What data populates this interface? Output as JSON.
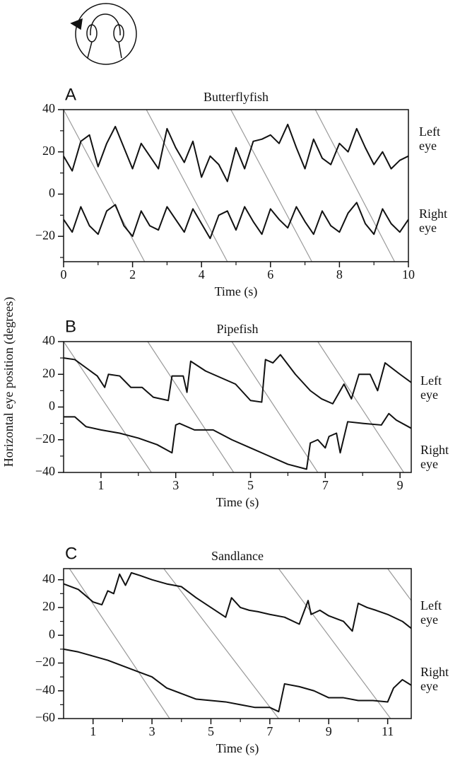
{
  "ylabel": "Horizontal eye position (degrees)",
  "chart_data": [
    {
      "type": "line",
      "panel": "A",
      "title": "Butterflyfish",
      "xlabel": "Time (s)",
      "xlim": [
        0,
        10
      ],
      "ylim": [
        -32,
        40
      ],
      "xticks": [
        0,
        2,
        4,
        6,
        8,
        10
      ],
      "minor_xticks": [
        1,
        3,
        5,
        7,
        9
      ],
      "yticks": [
        40,
        20,
        0,
        {
          "value": -20,
          "label": "−20"
        }
      ],
      "minor_yticks": [
        30,
        10,
        -10,
        -30
      ],
      "series": [
        {
          "name": "Left eye",
          "color": "#111111",
          "x": [
            0,
            0.25,
            0.5,
            0.75,
            1,
            1.25,
            1.5,
            1.75,
            2,
            2.25,
            2.5,
            2.75,
            3,
            3.25,
            3.5,
            3.75,
            4,
            4.25,
            4.5,
            4.75,
            5,
            5.25,
            5.5,
            5.75,
            6,
            6.25,
            6.5,
            6.75,
            7,
            7.25,
            7.5,
            7.75,
            8,
            8.25,
            8.5,
            8.75,
            9,
            9.25,
            9.5,
            9.75,
            10
          ],
          "values": [
            18,
            11,
            25,
            28,
            13,
            24,
            32,
            22,
            12,
            24,
            18,
            12,
            31,
            22,
            15,
            25,
            8,
            18,
            14,
            6,
            22,
            12,
            25,
            26,
            28,
            24,
            33,
            22,
            12,
            26,
            17,
            14,
            24,
            20,
            31,
            22,
            14,
            20,
            12,
            16,
            18
          ]
        },
        {
          "name": "Right eye",
          "color": "#111111",
          "x": [
            0,
            0.25,
            0.5,
            0.75,
            1,
            1.25,
            1.5,
            1.75,
            2,
            2.25,
            2.5,
            2.75,
            3,
            3.25,
            3.5,
            3.75,
            4,
            4.25,
            4.5,
            4.75,
            5,
            5.25,
            5.5,
            5.75,
            6,
            6.25,
            6.5,
            6.75,
            7,
            7.25,
            7.5,
            7.75,
            8,
            8.25,
            8.5,
            8.75,
            9,
            9.25,
            9.5,
            9.75,
            10
          ],
          "values": [
            -12,
            -18,
            -6,
            -15,
            -19,
            -8,
            -5,
            -15,
            -20,
            -8,
            -15,
            -17,
            -6,
            -12,
            -18,
            -7,
            -14,
            -21,
            -10,
            -8,
            -17,
            -6,
            -13,
            -19,
            -7,
            -12,
            -16,
            -6,
            -13,
            -19,
            -8,
            -15,
            -18,
            -9,
            -4,
            -14,
            -19,
            -7,
            -14,
            -18,
            -12
          ]
        }
      ],
      "reference_lines": [
        {
          "color": "#999999",
          "x": [
            0,
            2.35
          ],
          "y": [
            40,
            -32
          ]
        },
        {
          "color": "#999999",
          "x": [
            2.4,
            4.75
          ],
          "y": [
            40,
            -32
          ]
        },
        {
          "color": "#999999",
          "x": [
            4.85,
            7.2
          ],
          "y": [
            40,
            -32
          ]
        },
        {
          "color": "#999999",
          "x": [
            7.3,
            9.6
          ],
          "y": [
            40,
            -32
          ]
        }
      ]
    },
    {
      "type": "line",
      "panel": "B",
      "title": "Pipefish",
      "xlabel": "Time (s)",
      "xlim": [
        0,
        9.3
      ],
      "ylim": [
        -40,
        40
      ],
      "xticks": [
        1,
        3,
        5,
        7,
        9
      ],
      "minor_xticks": [
        2,
        4,
        6,
        8
      ],
      "yticks": [
        40,
        20,
        0,
        {
          "value": -20,
          "label": "−20"
        },
        {
          "value": -40,
          "label": "−40"
        }
      ],
      "minor_yticks": [
        30,
        10,
        -10,
        -30
      ],
      "series": [
        {
          "name": "Left eye",
          "color": "#111111",
          "x": [
            0,
            0.3,
            0.6,
            0.9,
            1.1,
            1.2,
            1.5,
            1.8,
            2.1,
            2.4,
            2.8,
            2.9,
            3.2,
            3.3,
            3.4,
            3.8,
            4.2,
            4.6,
            5.0,
            5.3,
            5.4,
            5.6,
            5.8,
            6.2,
            6.6,
            6.9,
            7.2,
            7.5,
            7.7,
            7.9,
            8.2,
            8.4,
            8.6,
            9.0,
            9.3
          ],
          "values": [
            30,
            29,
            24,
            19,
            12,
            20,
            19,
            12,
            12,
            6,
            4,
            19,
            19,
            9,
            28,
            22,
            18,
            14,
            4,
            3,
            29,
            27,
            32,
            20,
            10,
            5,
            2,
            14,
            5,
            20,
            20,
            10,
            27,
            20,
            15
          ]
        },
        {
          "name": "Right eye",
          "color": "#111111",
          "x": [
            0,
            0.3,
            0.6,
            1.0,
            1.5,
            2.0,
            2.5,
            2.9,
            3.0,
            3.1,
            3.5,
            4.0,
            4.5,
            5.0,
            5.5,
            6.0,
            6.5,
            6.6,
            6.8,
            7.0,
            7.1,
            7.3,
            7.4,
            7.6,
            8.0,
            8.5,
            8.7,
            8.9,
            9.3
          ],
          "values": [
            -6,
            -6,
            -12,
            -14,
            -16,
            -19,
            -23,
            -28,
            -11,
            -10,
            -14,
            -14,
            -20,
            -25,
            -30,
            -35,
            -38,
            -22,
            -20,
            -25,
            -18,
            -16,
            -28,
            -9,
            -10,
            -11,
            -4,
            -8,
            -13
          ]
        }
      ],
      "reference_lines": [
        {
          "color": "#999999",
          "x": [
            0,
            2.35
          ],
          "y": [
            40,
            -40
          ]
        },
        {
          "color": "#999999",
          "x": [
            2.25,
            4.55
          ],
          "y": [
            40,
            -40
          ]
        },
        {
          "color": "#999999",
          "x": [
            4.5,
            6.8
          ],
          "y": [
            40,
            -40
          ]
        },
        {
          "color": "#999999",
          "x": [
            6.8,
            9.1
          ],
          "y": [
            40,
            -40
          ]
        }
      ]
    },
    {
      "type": "line",
      "panel": "C",
      "title": "Sandlance",
      "xlabel": "Time (s)",
      "xlim": [
        0,
        11.8
      ],
      "ylim": [
        -60,
        48
      ],
      "xticks": [
        1,
        3,
        5,
        7,
        9,
        11
      ],
      "minor_xticks": [
        2,
        4,
        6,
        8,
        10
      ],
      "yticks": [
        40,
        20,
        0,
        {
          "value": -20,
          "label": "−20"
        },
        {
          "value": -40,
          "label": "−40"
        },
        {
          "value": -60,
          "label": "−60"
        }
      ],
      "minor_yticks": [
        30,
        10,
        -10,
        -30,
        -50
      ],
      "series": [
        {
          "name": "Left eye",
          "color": "#111111",
          "x": [
            0,
            0.5,
            1.0,
            1.3,
            1.5,
            1.7,
            1.9,
            2.1,
            2.3,
            2.6,
            3.0,
            3.5,
            4.0,
            4.5,
            5.0,
            5.5,
            5.7,
            6.0,
            6.3,
            6.6,
            7.0,
            7.5,
            8.0,
            8.3,
            8.4,
            8.7,
            9.0,
            9.5,
            9.8,
            10.0,
            10.3,
            10.6,
            11.0,
            11.5,
            11.8
          ],
          "values": [
            37,
            33,
            24,
            22,
            32,
            30,
            44,
            36,
            45,
            43,
            40,
            37,
            35,
            27,
            20,
            13,
            27,
            20,
            18,
            17,
            15,
            13,
            8,
            25,
            15,
            18,
            14,
            10,
            3,
            23,
            20,
            18,
            15,
            10,
            5
          ]
        },
        {
          "name": "Right eye",
          "color": "#111111",
          "x": [
            0,
            0.5,
            1.0,
            1.5,
            2.0,
            2.5,
            3.0,
            3.5,
            4.0,
            4.5,
            5.0,
            5.5,
            6.0,
            6.5,
            7.0,
            7.3,
            7.5,
            8.0,
            8.5,
            9.0,
            9.5,
            10.0,
            10.5,
            11.0,
            11.2,
            11.5,
            11.8
          ],
          "values": [
            -10,
            -12,
            -15,
            -18,
            -22,
            -26,
            -30,
            -38,
            -42,
            -46,
            -47,
            -48,
            -50,
            -52,
            -52,
            -55,
            -35,
            -37,
            -40,
            -45,
            -45,
            -47,
            -47,
            -48,
            -38,
            -32,
            -36
          ]
        }
      ],
      "reference_lines": [
        {
          "color": "#999999",
          "x": [
            0.2,
            3.6
          ],
          "y": [
            48,
            -60
          ]
        },
        {
          "color": "#999999",
          "x": [
            3.4,
            7.3
          ],
          "y": [
            48,
            -60
          ]
        },
        {
          "color": "#999999",
          "x": [
            7.3,
            11.1
          ],
          "y": [
            48,
            -60
          ]
        },
        {
          "color": "#999999",
          "x": [
            11.0,
            11.8
          ],
          "y": [
            48,
            25
          ]
        }
      ]
    }
  ]
}
